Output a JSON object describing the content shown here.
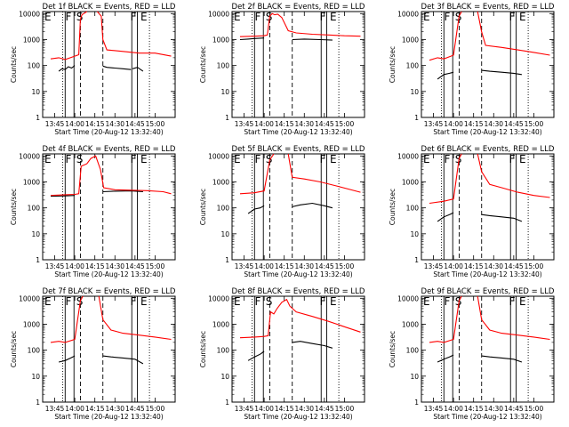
{
  "figure": {
    "shared": {
      "xtick_labels": [
        "13:45",
        "14:00",
        "14:15",
        "14:30",
        "14:45",
        "15:00"
      ],
      "xticks_min": [
        13.75,
        14.0,
        14.25,
        14.5,
        14.75,
        15.0
      ],
      "xlabel": "Start Time (20-Aug-12 13:32:40)",
      "ylabel": "Counts/sec",
      "ytick_labels": [
        "1",
        "10",
        "100",
        "1000",
        "10000"
      ],
      "yticks": [
        1,
        10,
        100,
        1000,
        10000
      ],
      "xlim": [
        13.6,
        15.25
      ],
      "ylim": [
        1,
        12000
      ],
      "yscale": "log",
      "series_colors": {
        "events": "#000000",
        "lld": "#ff0000"
      },
      "grid": false
    },
    "vertical_lines": [
      {
        "hour": 13.85,
        "style": "dotted"
      },
      {
        "hour": 13.88,
        "style": "solid"
      },
      {
        "hour": 13.99,
        "style": "solid"
      },
      {
        "hour": 14.07,
        "style": "dashed"
      },
      {
        "hour": 14.35,
        "style": "dashed"
      },
      {
        "hour": 14.71,
        "style": "solid"
      },
      {
        "hour": 14.78,
        "style": "solid"
      },
      {
        "hour": 14.93,
        "style": "dotted"
      }
    ],
    "phase_markers": [
      {
        "text": "F",
        "hour": 13.92
      },
      {
        "text": "S",
        "hour": 14.06
      },
      {
        "text": "F",
        "hour": 14.73
      },
      {
        "text": "E",
        "hour": 14.86
      }
    ]
  },
  "chart_data": [
    {
      "type": "line",
      "title": "Det 1f BLACK = Events, RED = LLD",
      "corner_mark": "E",
      "series": [
        {
          "color": "#000000",
          "segments": [
            {
              "x": [
                13.8,
                13.84,
                13.88,
                13.92,
                13.96,
                14.0
              ],
              "y": [
                60,
                75,
                70,
                90,
                80,
                100
              ]
            },
            {
              "x": [
                14.35,
                14.4,
                14.5,
                14.6,
                14.7
              ],
              "y": [
                95,
                85,
                80,
                75,
                70
              ]
            },
            {
              "x": [
                14.72,
                14.78,
                14.85
              ],
              "y": [
                75,
                85,
                60
              ]
            }
          ]
        },
        {
          "color": "#ff0000",
          "segments": [
            {
              "x": [
                13.7,
                13.8,
                13.88,
                14.0,
                14.05,
                14.07,
                14.09,
                14.15
              ],
              "y": [
                180,
                200,
                170,
                230,
                260,
                6000,
                9000,
                12000
              ]
            },
            {
              "x": [
                14.28,
                14.33,
                14.35,
                14.4,
                14.6,
                14.8,
                15.0,
                15.2
              ],
              "y": [
                12000,
                8000,
                1000,
                400,
                350,
                300,
                300,
                230
              ]
            }
          ]
        }
      ]
    },
    {
      "type": "line",
      "title": "Det 2f BLACK = Events, RED = LLD",
      "corner_mark": "E",
      "series": [
        {
          "color": "#000000",
          "segments": [
            {
              "x": [
                13.7,
                13.8,
                13.88,
                14.0
              ],
              "y": [
                1000,
                1050,
                1100,
                1150
              ]
            },
            {
              "x": [
                14.35,
                14.5,
                14.7,
                14.85
              ],
              "y": [
                1000,
                1050,
                1000,
                950
              ]
            }
          ]
        },
        {
          "color": "#ff0000",
          "segments": [
            {
              "x": [
                13.7,
                13.88,
                14.0,
                14.04,
                14.07,
                14.1,
                14.13,
                14.17,
                14.22,
                14.3,
                14.4,
                14.6,
                14.8,
                15.0,
                15.2
              ],
              "y": [
                1300,
                1350,
                1400,
                1500,
                8000,
                10000,
                9000,
                9500,
                7000,
                2200,
                1800,
                1600,
                1500,
                1400,
                1350
              ]
            }
          ]
        }
      ]
    },
    {
      "type": "line",
      "title": "Det 3f BLACK = Events, RED = LLD",
      "corner_mark": "E",
      "series": [
        {
          "color": "#000000",
          "segments": [
            {
              "x": [
                13.8,
                13.88,
                13.95,
                14.0
              ],
              "y": [
                30,
                45,
                50,
                55
              ]
            },
            {
              "x": [
                14.35,
                14.45,
                14.6,
                14.75,
                14.85
              ],
              "y": [
                65,
                60,
                55,
                50,
                45
              ]
            }
          ]
        },
        {
          "color": "#ff0000",
          "segments": [
            {
              "x": [
                13.7,
                13.8,
                13.88,
                14.0,
                14.07,
                14.1
              ],
              "y": [
                160,
                200,
                180,
                250,
                8000,
                12000
              ]
            },
            {
              "x": [
                14.3,
                14.35,
                14.4,
                14.6,
                14.8,
                15.0,
                15.2
              ],
              "y": [
                12000,
                2000,
                600,
                500,
                400,
                320,
                250
              ]
            }
          ]
        }
      ]
    },
    {
      "type": "line",
      "title": "Det 4f BLACK = Events, RED = LLD",
      "corner_mark": "E",
      "series": [
        {
          "color": "#000000",
          "segments": [
            {
              "x": [
                13.7,
                13.88,
                14.0
              ],
              "y": [
                280,
                290,
                300
              ]
            },
            {
              "x": [
                14.35,
                14.5,
                14.7,
                14.85
              ],
              "y": [
                420,
                440,
                450,
                420
              ]
            }
          ]
        },
        {
          "color": "#ff0000",
          "segments": [
            {
              "x": [
                13.7,
                13.88,
                14.0,
                14.05,
                14.08,
                14.15,
                14.2,
                14.26,
                14.32,
                14.36,
                14.5,
                14.7,
                14.9,
                15.1,
                15.2
              ],
              "y": [
                300,
                320,
                330,
                350,
                4000,
                5000,
                8000,
                10000,
                3000,
                600,
                500,
                480,
                460,
                420,
                350
              ]
            }
          ]
        }
      ]
    },
    {
      "type": "line",
      "title": "Det 5f BLACK = Events, RED = LLD",
      "corner_mark": "E",
      "series": [
        {
          "color": "#000000",
          "segments": [
            {
              "x": [
                13.8,
                13.88,
                13.95,
                14.0
              ],
              "y": [
                60,
                90,
                100,
                120
              ]
            },
            {
              "x": [
                14.35,
                14.45,
                14.6,
                14.75,
                14.85
              ],
              "y": [
                110,
                130,
                150,
                120,
                100
              ]
            }
          ]
        },
        {
          "color": "#ff0000",
          "segments": [
            {
              "x": [
                13.7,
                13.88,
                14.0,
                14.07,
                14.12
              ],
              "y": [
                350,
                380,
                450,
                7000,
                12000
              ]
            },
            {
              "x": [
                14.3,
                14.35,
                14.5,
                14.7,
                14.9,
                15.2
              ],
              "y": [
                12000,
                1500,
                1300,
                1000,
                700,
                400
              ]
            }
          ]
        }
      ]
    },
    {
      "type": "line",
      "title": "Det 6f BLACK = Events, RED = LLD",
      "corner_mark": "E",
      "series": [
        {
          "color": "#000000",
          "segments": [
            {
              "x": [
                13.8,
                13.88,
                13.95,
                14.0
              ],
              "y": [
                30,
                45,
                55,
                65
              ]
            },
            {
              "x": [
                14.35,
                14.45,
                14.6,
                14.75,
                14.85
              ],
              "y": [
                55,
                50,
                45,
                40,
                30
              ]
            }
          ]
        },
        {
          "color": "#ff0000",
          "segments": [
            {
              "x": [
                13.7,
                13.88,
                14.0,
                14.07,
                14.1
              ],
              "y": [
                150,
                180,
                220,
                8000,
                12000
              ]
            },
            {
              "x": [
                14.3,
                14.35,
                14.45,
                14.6,
                14.8,
                15.0,
                15.2
              ],
              "y": [
                12000,
                2500,
                800,
                600,
                400,
                300,
                250
              ]
            }
          ]
        }
      ]
    },
    {
      "type": "line",
      "title": "Det 7f BLACK = Events, RED = LLD",
      "corner_mark": "E",
      "series": [
        {
          "color": "#000000",
          "segments": [
            {
              "x": [
                13.8,
                13.88,
                13.95,
                14.0
              ],
              "y": [
                35,
                40,
                50,
                60
              ]
            },
            {
              "x": [
                14.35,
                14.45,
                14.6,
                14.75,
                14.85
              ],
              "y": [
                60,
                55,
                50,
                45,
                30
              ]
            }
          ]
        },
        {
          "color": "#ff0000",
          "segments": [
            {
              "x": [
                13.7,
                13.8,
                13.88,
                14.0,
                14.07,
                14.1
              ],
              "y": [
                200,
                220,
                200,
                260,
                8000,
                12000
              ]
            },
            {
              "x": [
                14.3,
                14.35,
                14.45,
                14.6,
                14.8,
                15.0,
                15.2
              ],
              "y": [
                12000,
                1500,
                600,
                450,
                380,
                320,
                260
              ]
            }
          ]
        }
      ]
    },
    {
      "type": "line",
      "title": "Det 8f BLACK = Events, RED = LLD",
      "corner_mark": "E",
      "series": [
        {
          "color": "#000000",
          "segments": [
            {
              "x": [
                13.8,
                13.88,
                13.95,
                14.0
              ],
              "y": [
                40,
                55,
                70,
                90
              ]
            },
            {
              "x": [
                14.35,
                14.45,
                14.6,
                14.75,
                14.85
              ],
              "y": [
                200,
                220,
                180,
                150,
                120
              ]
            }
          ]
        },
        {
          "color": "#ff0000",
          "segments": [
            {
              "x": [
                13.7,
                13.88,
                14.0,
                14.05,
                14.08,
                14.12,
                14.16,
                14.22,
                14.28,
                14.32,
                14.4,
                14.6,
                14.8,
                15.0,
                15.2
              ],
              "y": [
                300,
                320,
                340,
                360,
                3000,
                2500,
                4000,
                7000,
                9000,
                5000,
                3000,
                2000,
                1300,
                800,
                500
              ]
            }
          ]
        }
      ]
    },
    {
      "type": "line",
      "title": "Det 9f BLACK = Events, RED = LLD",
      "corner_mark": "E",
      "series": [
        {
          "color": "#000000",
          "segments": [
            {
              "x": [
                13.8,
                13.88,
                13.95,
                14.0
              ],
              "y": [
                35,
                45,
                55,
                65
              ]
            },
            {
              "x": [
                14.35,
                14.45,
                14.6,
                14.75,
                14.85
              ],
              "y": [
                60,
                55,
                50,
                45,
                35
              ]
            }
          ]
        },
        {
          "color": "#ff0000",
          "segments": [
            {
              "x": [
                13.7,
                13.8,
                13.88,
                14.0,
                14.07,
                14.1
              ],
              "y": [
                200,
                220,
                200,
                260,
                8000,
                12000
              ]
            },
            {
              "x": [
                14.3,
                14.35,
                14.45,
                14.6,
                14.8,
                15.0,
                15.2
              ],
              "y": [
                12000,
                1500,
                600,
                450,
                380,
                320,
                260
              ]
            }
          ]
        }
      ]
    }
  ]
}
